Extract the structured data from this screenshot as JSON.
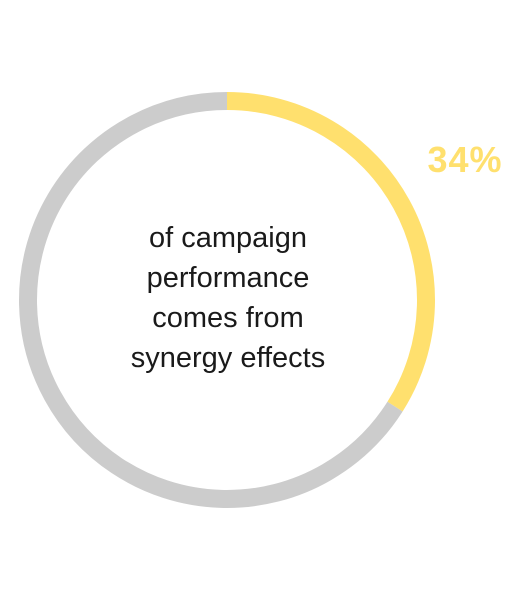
{
  "chart_data": {
    "type": "pie",
    "variant": "donut",
    "values": [
      34,
      66
    ],
    "data_labels": [
      "34%",
      ""
    ],
    "colors": [
      "#FFE06E",
      "#CCCCCC"
    ],
    "start": "top",
    "direction": "clockwise",
    "center_text": [
      "of campaign",
      "performance",
      "comes from",
      "synergy effects"
    ]
  }
}
